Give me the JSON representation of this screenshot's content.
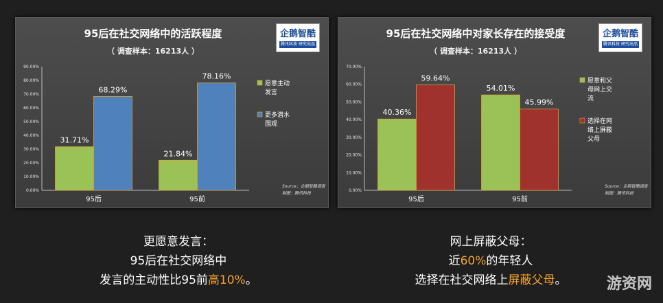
{
  "charts": [
    {
      "title": "95后在社交网络中的活跃程度",
      "subtitle": "（ 调查样本：16213人 ）",
      "logo": {
        "name": "企鹅智酷",
        "tagline": "腾讯科技  研究出品"
      },
      "source": "Source：企鹅智酷调查",
      "made_by": "制图：腾讯科技"
    },
    {
      "title": "95后在社交网络中对家长存在的接受度",
      "subtitle": "（ 调查样本：16213人 ）",
      "logo": {
        "name": "企鹅智酷",
        "tagline": "腾讯科技  研究出品"
      },
      "source": "Source：企鹅智酷调查",
      "made_by": "制图：腾讯科技"
    }
  ],
  "chart_data": [
    {
      "type": "bar",
      "title": "95后在社交网络中的活跃程度",
      "categories": [
        "95后",
        "95前"
      ],
      "series": [
        {
          "name": "愿意主动发言",
          "legend_lines": [
            "愿意主动",
            "发言"
          ],
          "values": [
            31.71,
            21.84
          ],
          "labels": [
            "31.71%",
            "21.84%"
          ],
          "color": "#9bc257"
        },
        {
          "name": "更多潜水围观",
          "legend_lines": [
            "更多潜水",
            "围观"
          ],
          "values": [
            68.29,
            78.16
          ],
          "labels": [
            "68.29%",
            "78.16%"
          ],
          "color": "#4f81bd"
        }
      ],
      "ylim": [
        0,
        90
      ],
      "ticks": [
        "0.00%",
        "10.00%",
        "20.00%",
        "30.00%",
        "40.00%",
        "50.00%",
        "60.00%",
        "70.00%",
        "80.00%",
        "90.00%"
      ],
      "legend": "right",
      "grid": false
    },
    {
      "type": "bar",
      "title": "95后在社交网络中对家长存在的接受度",
      "categories": [
        "95后",
        "95前"
      ],
      "series": [
        {
          "name": "愿意和父母网上交流",
          "legend_lines": [
            "愿意和父",
            "母网上交",
            "流"
          ],
          "values": [
            40.36,
            54.01
          ],
          "labels": [
            "40.36%",
            "54.01%"
          ],
          "color": "#9bc257"
        },
        {
          "name": "选择在网络上屏蔽父母",
          "legend_lines": [
            "选择在网",
            "络上屏蔽",
            "父母"
          ],
          "values": [
            59.64,
            45.99
          ],
          "labels": [
            "59.64%",
            "45.99%"
          ],
          "color": "#a0322e"
        }
      ],
      "ylim": [
        0,
        70
      ],
      "ticks": [
        "0.00%",
        "10.00%",
        "20.00%",
        "30.00%",
        "40.00%",
        "50.00%",
        "60.00%",
        "70.00%"
      ],
      "legend": "right",
      "grid": false
    }
  ],
  "captions": {
    "left": {
      "line1": "更愿意发言：",
      "line2": "95后在社交网络中",
      "line3_a": "发言的主动性比95前",
      "line3_hl": "高10%",
      "line3_b": "。"
    },
    "right": {
      "line1": "网上屏蔽父母：",
      "line2_a": "近",
      "line2_hl": "60%",
      "line2_b": "的年轻人",
      "line3_a": "选择在社交网络上",
      "line3_hl": "屏蔽父母",
      "line3_b": "。"
    }
  },
  "watermark": "游资网",
  "colors": {
    "highlight": "#f3a22f",
    "green": "#9bc257",
    "blue": "#4f81bd",
    "red": "#a0322e"
  }
}
